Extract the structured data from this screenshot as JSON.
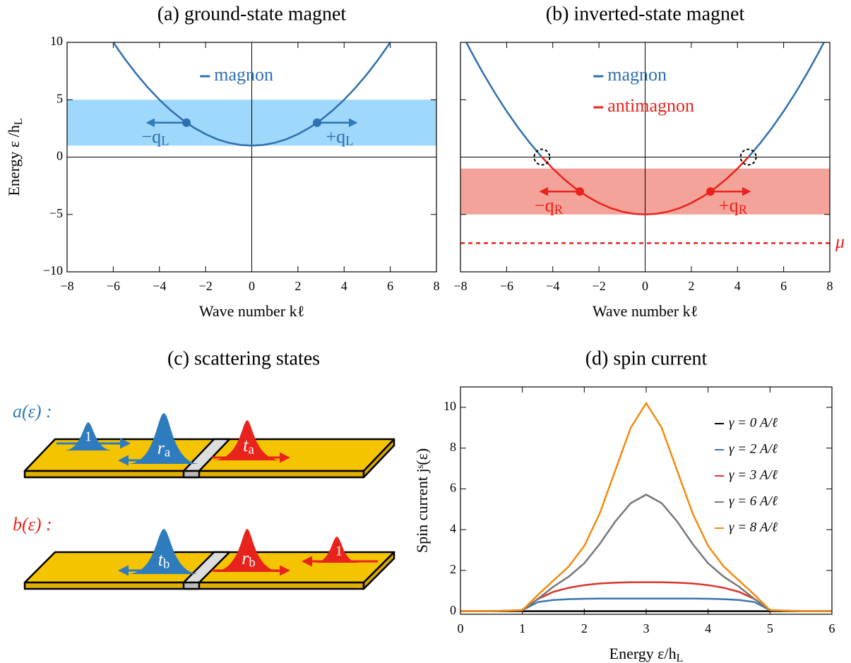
{
  "chart_data": [
    {
      "type": "line",
      "title": "(a) ground-state magnet",
      "xlabel": "Wave number kℓ",
      "ylabel": "Energy ε /hL",
      "x": [
        -6,
        -5.5,
        -5,
        -4.5,
        -4,
        -3.5,
        -3,
        -2.5,
        -2,
        -1.5,
        -1,
        -0.5,
        0,
        0.5,
        1,
        1.5,
        2,
        2.5,
        3,
        3.5,
        4,
        4.5,
        5,
        5.5,
        6
      ],
      "series": [
        {
          "name": "magnon",
          "color": "#2e6fb0",
          "values": [
            10,
            8.56,
            7.25,
            6.06,
            5,
            4.06,
            3.25,
            2.56,
            2,
            1.56,
            1.25,
            1.06,
            1,
            1.06,
            1.25,
            1.56,
            2,
            2.56,
            3.25,
            4.06,
            5,
            6.06,
            7.25,
            8.56,
            10
          ]
        }
      ],
      "xlim": [
        -8,
        8
      ],
      "ylim": [
        -10,
        10
      ],
      "xticks": [
        {
          "value": -8,
          "label": "−8"
        },
        {
          "value": -6,
          "label": "−6"
        },
        {
          "value": -4,
          "label": "−4"
        },
        {
          "value": -2,
          "label": "−2"
        },
        0,
        2,
        4,
        6,
        8
      ],
      "yticks": [
        {
          "value": -10,
          "label": "−10"
        },
        {
          "value": -5,
          "label": "−5"
        },
        0,
        5,
        10
      ],
      "band": {
        "range": [
          1,
          5
        ],
        "color": "#9fd8fb"
      },
      "points": [
        {
          "x": -2.83,
          "y": 3,
          "label": "−qL"
        },
        {
          "x": 2.83,
          "y": 3,
          "label": "+qL"
        }
      ],
      "point_color": "#2e6fb0",
      "legend": "upper center",
      "zero_lines": true
    },
    {
      "type": "line",
      "title": "(b) inverted-state magnet",
      "xlabel": "Wave number kℓ",
      "x": [
        -7.75,
        -7.5,
        -7,
        -6.5,
        -6,
        -5.5,
        -5,
        -4.5,
        -4,
        -3.5,
        -3,
        -2.5,
        -2,
        -1.5,
        -1,
        -0.5,
        0,
        0.5,
        1,
        1.5,
        2,
        2.5,
        3,
        3.5,
        4,
        4.5,
        5,
        5.5,
        6,
        6.5,
        7,
        7.5,
        7.75
      ],
      "series": [
        {
          "name": "magnon",
          "color": "#2e6fb0",
          "values": [
            10.02,
            9.06,
            7.25,
            5.56,
            4,
            2.56,
            1.25,
            0.06,
            null,
            null,
            null,
            null,
            null,
            null,
            null,
            null,
            null,
            null,
            null,
            null,
            null,
            null,
            null,
            null,
            null,
            0.06,
            1.25,
            2.56,
            4,
            5.56,
            7.25,
            9.06,
            10.02
          ]
        },
        {
          "name": "antimagnon",
          "color": "#e8231c",
          "values": [
            null,
            null,
            null,
            null,
            null,
            null,
            null,
            0.06,
            -1,
            -1.94,
            -2.75,
            -3.44,
            -4,
            -4.44,
            -4.75,
            -4.94,
            -5,
            -4.94,
            -4.75,
            -4.44,
            -4,
            -3.44,
            -2.75,
            -1.94,
            -1,
            0.06,
            null,
            null,
            null,
            null,
            null,
            null,
            null
          ]
        }
      ],
      "xlim": [
        -8,
        8
      ],
      "ylim": [
        -10,
        10
      ],
      "xticks": [
        {
          "value": -8,
          "label": "−8"
        },
        {
          "value": -6,
          "label": "−6"
        },
        {
          "value": -4,
          "label": "−4"
        },
        {
          "value": -2,
          "label": "−2"
        },
        0,
        2,
        4,
        6,
        8
      ],
      "yticks": [
        -10,
        -5,
        0,
        5,
        10
      ],
      "ytick_labels": false,
      "band": {
        "range": [
          -5,
          -1
        ],
        "color": "#f4a39a"
      },
      "points": [
        {
          "x": -2.83,
          "y": -3,
          "label": "−qR"
        },
        {
          "x": 2.83,
          "y": -3,
          "label": "+qR"
        }
      ],
      "point_color": "#e8231c",
      "markers": [
        {
          "x": -4.47,
          "y": 0
        },
        {
          "x": 4.47,
          "y": 0
        }
      ],
      "reference_line": {
        "value": -7.5,
        "label": "μ",
        "color": "#e8231c"
      },
      "legend": "upper center",
      "zero_lines": true
    },
    {
      "type": "line",
      "title": "(d) spin current",
      "xlabel": "Energy ε/hL",
      "ylabel": "Spin current jˢ(ε)",
      "x": [
        0,
        0.5,
        1,
        1.25,
        1.5,
        1.75,
        2,
        2.25,
        2.5,
        2.75,
        3,
        3.25,
        3.5,
        3.75,
        4,
        4.25,
        4.5,
        4.75,
        5,
        5.5,
        6
      ],
      "series": [
        {
          "name": "γ = 0 A/ℓ",
          "color": "#000000",
          "values": [
            0,
            0,
            0,
            0,
            0,
            0,
            0,
            0,
            0,
            0,
            0,
            0,
            0,
            0,
            0,
            0,
            0,
            0,
            0,
            0,
            0
          ]
        },
        {
          "name": "γ = 2 A/ℓ",
          "color": "#3a75b0",
          "values": [
            0,
            0,
            0.05,
            0.45,
            0.55,
            0.59,
            0.61,
            0.62,
            0.62,
            0.62,
            0.62,
            0.62,
            0.62,
            0.62,
            0.61,
            0.59,
            0.55,
            0.45,
            0.05,
            0,
            0
          ]
        },
        {
          "name": "γ = 3 A/ℓ",
          "color": "#d9352a",
          "values": [
            0,
            0,
            0.05,
            0.6,
            0.95,
            1.15,
            1.28,
            1.36,
            1.4,
            1.42,
            1.42,
            1.42,
            1.4,
            1.36,
            1.28,
            1.15,
            0.95,
            0.6,
            0.05,
            0,
            0
          ]
        },
        {
          "name": "γ = 6 A/ℓ",
          "color": "#777777",
          "values": [
            0,
            0,
            0.05,
            0.6,
            1.2,
            1.7,
            2.35,
            3.3,
            4.4,
            5.3,
            5.72,
            5.3,
            4.4,
            3.3,
            2.35,
            1.7,
            1.2,
            0.6,
            0.05,
            0,
            0
          ]
        },
        {
          "name": "γ = 8 A/ℓ",
          "color": "#f28a12",
          "values": [
            0,
            0,
            0.05,
            0.8,
            1.5,
            2.2,
            3.2,
            4.8,
            6.9,
            9,
            10.2,
            9,
            6.9,
            4.8,
            3.2,
            2.2,
            1.5,
            0.8,
            0.05,
            0,
            0
          ]
        }
      ],
      "xlim": [
        0,
        6
      ],
      "ylim": [
        -0.15,
        11
      ],
      "xticks": [
        0,
        1,
        2,
        3,
        4,
        5,
        6
      ],
      "yticks": [
        0,
        2,
        4,
        6,
        8,
        10
      ],
      "legend": "upper right"
    }
  ],
  "diagram": {
    "title": "(c) scattering states",
    "rows": [
      {
        "label": "a(ε) :",
        "packets": [
          "1",
          "ra",
          "ta"
        ]
      },
      {
        "label": "b(ε) :",
        "packets": [
          "tb",
          "rb",
          "1"
        ]
      }
    ]
  }
}
